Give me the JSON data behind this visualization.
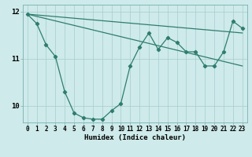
{
  "xlabel": "Humidex (Indice chaleur)",
  "bg_color": "#ceeaea",
  "line_color": "#2e7d6e",
  "xlim": [
    -0.5,
    23.5
  ],
  "ylim": [
    9.65,
    12.15
  ],
  "yticks": [
    10,
    11,
    12
  ],
  "xticks": [
    0,
    1,
    2,
    3,
    4,
    5,
    6,
    7,
    8,
    9,
    10,
    11,
    12,
    13,
    14,
    15,
    16,
    17,
    18,
    19,
    20,
    21,
    22,
    23
  ],
  "series1_x": [
    0,
    1,
    2,
    3,
    4,
    5,
    6,
    7,
    8,
    9,
    10,
    11,
    12,
    13,
    14,
    15,
    16,
    17,
    18,
    19,
    20,
    21,
    22,
    23
  ],
  "series1_y": [
    11.95,
    11.75,
    11.3,
    11.05,
    10.3,
    9.85,
    9.75,
    9.72,
    9.72,
    9.9,
    10.05,
    10.85,
    11.25,
    11.55,
    11.2,
    11.45,
    11.35,
    11.15,
    11.15,
    10.85,
    10.85,
    11.15,
    11.8,
    11.65
  ],
  "upper_line_x": [
    0,
    23
  ],
  "upper_line_y": [
    11.95,
    11.55
  ],
  "lower_line_x": [
    0,
    23
  ],
  "lower_line_y": [
    11.95,
    10.85
  ]
}
